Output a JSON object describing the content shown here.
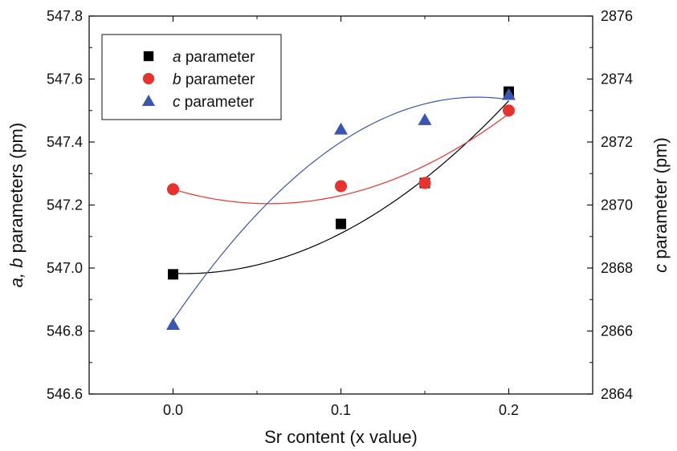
{
  "chart_data": {
    "type": "scatter",
    "x_axis": {
      "label": "Sr content (x value)",
      "range": [
        -0.05,
        0.25
      ],
      "ticks": [
        0.0,
        0.1,
        0.2
      ],
      "tick_labels": [
        "0.0",
        "0.1",
        "0.2"
      ]
    },
    "y_left": {
      "label_italic": "a, b",
      "label_rest": " parameters (pm)",
      "range": [
        546.6,
        547.8
      ],
      "ticks": [
        546.6,
        546.8,
        547.0,
        547.2,
        547.4,
        547.6,
        547.8
      ],
      "tick_labels": [
        "546.6",
        "546.8",
        "547.0",
        "547.2",
        "547.4",
        "547.6",
        "547.8"
      ]
    },
    "y_right": {
      "label_italic": "c",
      "label_rest": " parameter (pm)",
      "range": [
        2864,
        2876
      ],
      "ticks": [
        2864,
        2866,
        2868,
        2870,
        2872,
        2874,
        2876
      ],
      "tick_labels": [
        "2864",
        "2866",
        "2868",
        "2870",
        "2872",
        "2874",
        "2876"
      ]
    },
    "series": [
      {
        "name_italic": "a",
        "name_rest": " parameter",
        "axis": "left",
        "marker": "square",
        "color": "#000000",
        "x": [
          0.0,
          0.1,
          0.15,
          0.2
        ],
        "y": [
          546.98,
          547.14,
          547.27,
          547.56
        ],
        "fit": [
          546.983,
          -0.2,
          14.7
        ]
      },
      {
        "name_italic": "b",
        "name_rest": " parameter",
        "axis": "left",
        "marker": "circle",
        "color": "#e8322e",
        "x": [
          0.0,
          0.1,
          0.15,
          0.2
        ],
        "y": [
          547.25,
          547.26,
          547.27,
          547.5
        ],
        "fit": [
          547.25,
          -1.6,
          14.0
        ]
      },
      {
        "name_italic": "c",
        "name_rest": " parameter",
        "axis": "right",
        "marker": "triangle",
        "color": "#3a56b0",
        "x": [
          0.0,
          0.1,
          0.15,
          0.2
        ],
        "y": [
          2866.2,
          2872.4,
          2872.7,
          2873.5
        ],
        "fit": [
          2866.35,
          78.0,
          -215.0
        ]
      }
    ],
    "legend": "top-left",
    "grid": false
  }
}
